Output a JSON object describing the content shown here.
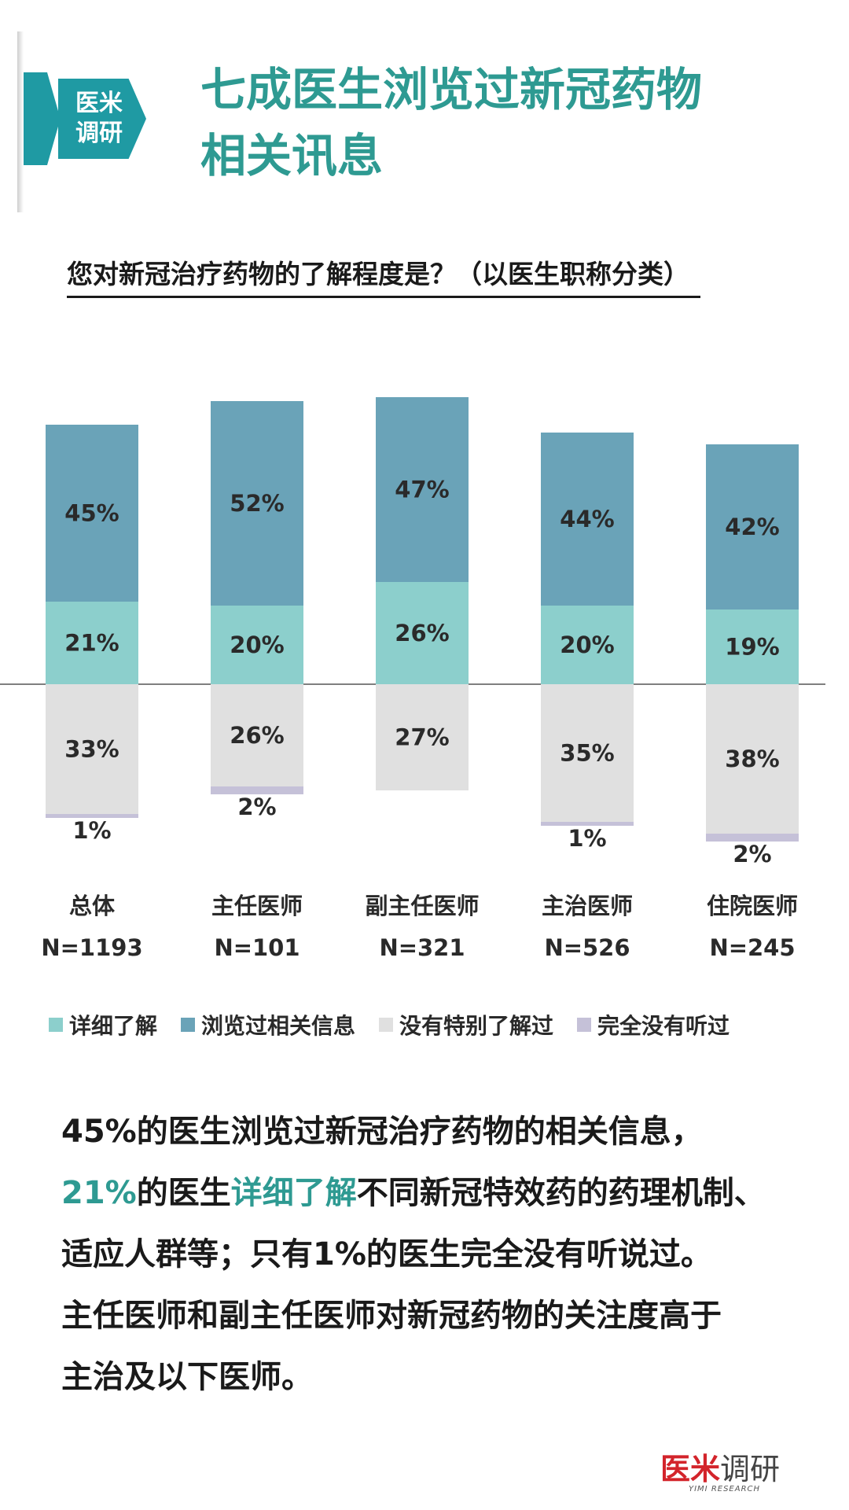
{
  "header": {
    "badge_line1": "医米",
    "badge_line2": "调研",
    "title_line1": "七成医生浏览过新冠药物",
    "title_line2": "相关讯息"
  },
  "question": "您对新冠治疗药物的了解程度是？（以医生职称分类）",
  "colors": {
    "teal_light": "#8ccfcc",
    "teal_dark": "#6aa3b8",
    "gray": "#e0e0e0",
    "lavender": "#c5c1d8",
    "accent": "#2e9a92"
  },
  "chart_data": {
    "type": "bar",
    "stacked": "diverging",
    "categories": [
      "总体",
      "主任医师",
      "副主任医师",
      "主治医师",
      "住院医师"
    ],
    "sample_sizes": [
      "N=1193",
      "N=101",
      "N=321",
      "N=526",
      "N=245"
    ],
    "series": [
      {
        "name": "详细了解",
        "direction": "up",
        "values": [
          21,
          20,
          26,
          20,
          19
        ],
        "labels": [
          "21%",
          "20%",
          "26%",
          "20%",
          "19%"
        ]
      },
      {
        "name": "浏览过相关信息",
        "direction": "up",
        "values": [
          45,
          52,
          47,
          44,
          42
        ],
        "labels": [
          "45%",
          "52%",
          "47%",
          "44%",
          "42%"
        ]
      },
      {
        "name": "没有特别了解过",
        "direction": "down",
        "values": [
          33,
          26,
          27,
          35,
          38
        ],
        "labels": [
          "33%",
          "26%",
          "27%",
          "35%",
          "38%"
        ]
      },
      {
        "name": "完全没有听过",
        "direction": "down",
        "values": [
          1,
          2,
          0,
          1,
          2
        ],
        "labels": [
          "1%",
          "2%",
          "",
          "1%",
          "2%"
        ]
      }
    ]
  },
  "summary": {
    "line1": "45%的医生浏览过新冠治疗药物的相关信息，",
    "line2_hl1": "21%",
    "line2_a": "的医生",
    "line2_hl2": "详细了解",
    "line2_b": "不同新冠特效药的药理机制、",
    "line3": "适应人群等；只有1%的医生完全没有听说过。",
    "line4": "主任医师和副主任医师对新冠药物的关注度高于",
    "line5": "主治及以下医师。"
  },
  "brand": {
    "red": "医米",
    "gray": "调研",
    "sub": "YIMI RESEARCH"
  }
}
